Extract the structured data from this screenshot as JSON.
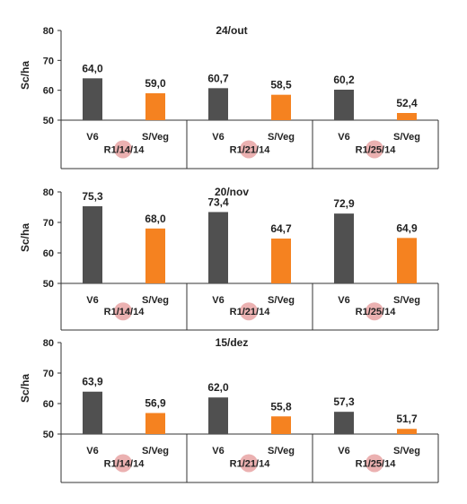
{
  "colors": {
    "v6": "#505050",
    "sveg": "#f58220",
    "marker": "#e8a3a3",
    "axis": "#333333"
  },
  "chart_data": [
    {
      "type": "bar",
      "title": "24/out",
      "ylabel": "Sc/ha",
      "ylim": [
        50,
        80
      ],
      "yticks": [
        50,
        60,
        70,
        80
      ],
      "groups": [
        {
          "label": "R1/14/14",
          "marked": "14",
          "categories": [
            "V6",
            "S/Veg"
          ],
          "values": [
            64.0,
            59.0
          ],
          "labels": [
            "64,0",
            "59,0"
          ]
        },
        {
          "label": "R1/21/14",
          "marked": "21",
          "categories": [
            "V6",
            "S/Veg"
          ],
          "values": [
            60.7,
            58.5
          ],
          "labels": [
            "60,7",
            "58,5"
          ]
        },
        {
          "label": "R1/25/14",
          "marked": "25",
          "categories": [
            "V6",
            "S/Veg"
          ],
          "values": [
            60.2,
            52.4
          ],
          "labels": [
            "60,2",
            "52,4"
          ]
        }
      ]
    },
    {
      "type": "bar",
      "title": "20/nov",
      "ylabel": "Sc/ha",
      "ylim": [
        50,
        80
      ],
      "yticks": [
        50,
        60,
        70,
        80
      ],
      "groups": [
        {
          "label": "R1/14/14",
          "marked": "14",
          "categories": [
            "V6",
            "S/Veg"
          ],
          "values": [
            75.3,
            68.0
          ],
          "labels": [
            "75,3",
            "68,0"
          ]
        },
        {
          "label": "R1/21/14",
          "marked": "21",
          "categories": [
            "V6",
            "S/Veg"
          ],
          "values": [
            73.4,
            64.7
          ],
          "labels": [
            "73,4",
            "64,7"
          ]
        },
        {
          "label": "R1/25/14",
          "marked": "25",
          "categories": [
            "V6",
            "S/Veg"
          ],
          "values": [
            72.9,
            64.9
          ],
          "labels": [
            "72,9",
            "64,9"
          ]
        }
      ]
    },
    {
      "type": "bar",
      "title": "15/dez",
      "ylabel": "Sc/ha",
      "ylim": [
        50,
        80
      ],
      "yticks": [
        50,
        60,
        70,
        80
      ],
      "groups": [
        {
          "label": "R1/14/14",
          "marked": "14",
          "categories": [
            "V6",
            "S/Veg"
          ],
          "values": [
            63.9,
            56.9
          ],
          "labels": [
            "63,9",
            "56,9"
          ]
        },
        {
          "label": "R1/21/14",
          "marked": "21",
          "categories": [
            "V6",
            "S/Veg"
          ],
          "values": [
            62.0,
            55.8
          ],
          "labels": [
            "62,0",
            "55,8"
          ]
        },
        {
          "label": "R1/25/14",
          "marked": "25",
          "categories": [
            "V6",
            "S/Veg"
          ],
          "values": [
            57.3,
            51.7
          ],
          "labels": [
            "57,3",
            "51,7"
          ]
        }
      ]
    }
  ]
}
